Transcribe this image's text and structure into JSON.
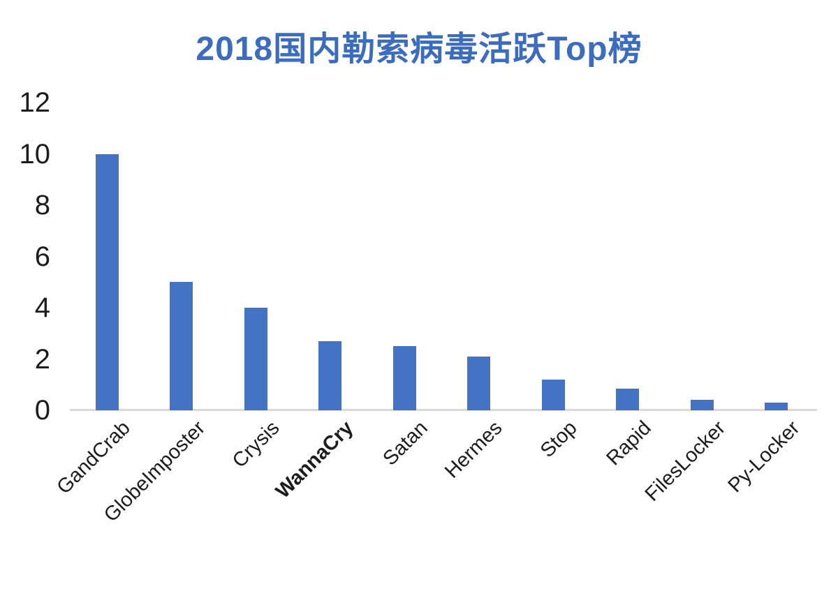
{
  "page": {
    "background": "#ffffff"
  },
  "chart_data": {
    "type": "bar",
    "title": "2018国内勒索病毒活跃Top榜",
    "categories": [
      "GandCrab",
      "GlobeImposter",
      "Crysis",
      "WannaCry",
      "Satan",
      "Hermes",
      "Stop",
      "Rapid",
      "FilesLocker",
      "Py-Locker"
    ],
    "values": [
      10,
      5,
      4,
      2.7,
      2.5,
      2.1,
      1.2,
      0.85,
      0.4,
      0.3
    ],
    "bold_categories": [
      "WannaCry"
    ],
    "xlabel": "",
    "ylabel": "",
    "ylim": [
      0,
      12
    ],
    "yticks": [
      0,
      2,
      4,
      6,
      8,
      10,
      12
    ],
    "grid": false,
    "legend": "none",
    "title_color": "#3B6CBE",
    "bar_color": "#4472C4",
    "axis_line_color": "#D9D9D9",
    "tick_label_color": "#1C1C1C"
  }
}
